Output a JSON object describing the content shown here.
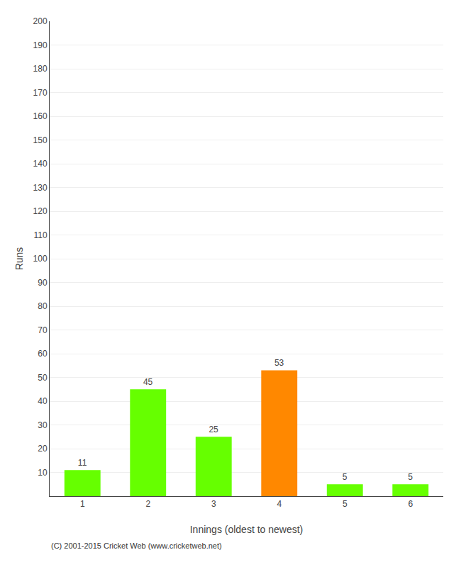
{
  "chart_data": {
    "type": "bar",
    "categories": [
      "1",
      "2",
      "3",
      "4",
      "5",
      "6"
    ],
    "values": [
      11,
      45,
      25,
      53,
      5,
      5
    ],
    "colors": [
      "#66ff00",
      "#66ff00",
      "#66ff00",
      "#ff8800",
      "#66ff00",
      "#66ff00"
    ],
    "x_label": "Innings (oldest to newest)",
    "y_label": "Runs",
    "ylim": [
      0,
      200
    ],
    "yticks": [
      10,
      20,
      30,
      40,
      50,
      60,
      70,
      80,
      90,
      100,
      110,
      120,
      130,
      140,
      150,
      160,
      170,
      180,
      190,
      200
    ],
    "grid": true,
    "data_labels": true,
    "annotations": [
      "(C) 2001-2015 Cricket Web (www.cricketweb.net)"
    ]
  }
}
